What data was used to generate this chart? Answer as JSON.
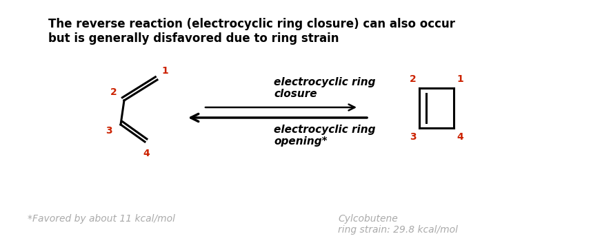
{
  "title_line1": "The reverse reaction (electrocyclic ring closure) can also occur",
  "title_line2": "but is generally disfavored due to ring strain",
  "title_fontsize": 12,
  "title_bold": true,
  "title_color": "#000000",
  "arrow_label_top": "electrocyclic ring\nclosure",
  "arrow_label_bottom": "electrocyclic ring\nopening*",
  "arrow_label_fontsize": 11,
  "arrow_label_style": "italic",
  "footnote_left": "*Favored by about 11 kcal/mol",
  "footnote_right": "Cylcobutene\nring strain: 29.8 kcal/mol",
  "footnote_fontsize": 10,
  "footnote_color": "#aaaaaa",
  "footnote_style": "italic",
  "number_color": "#cc2200",
  "number_fontsize": 10,
  "background_color": "#ffffff"
}
